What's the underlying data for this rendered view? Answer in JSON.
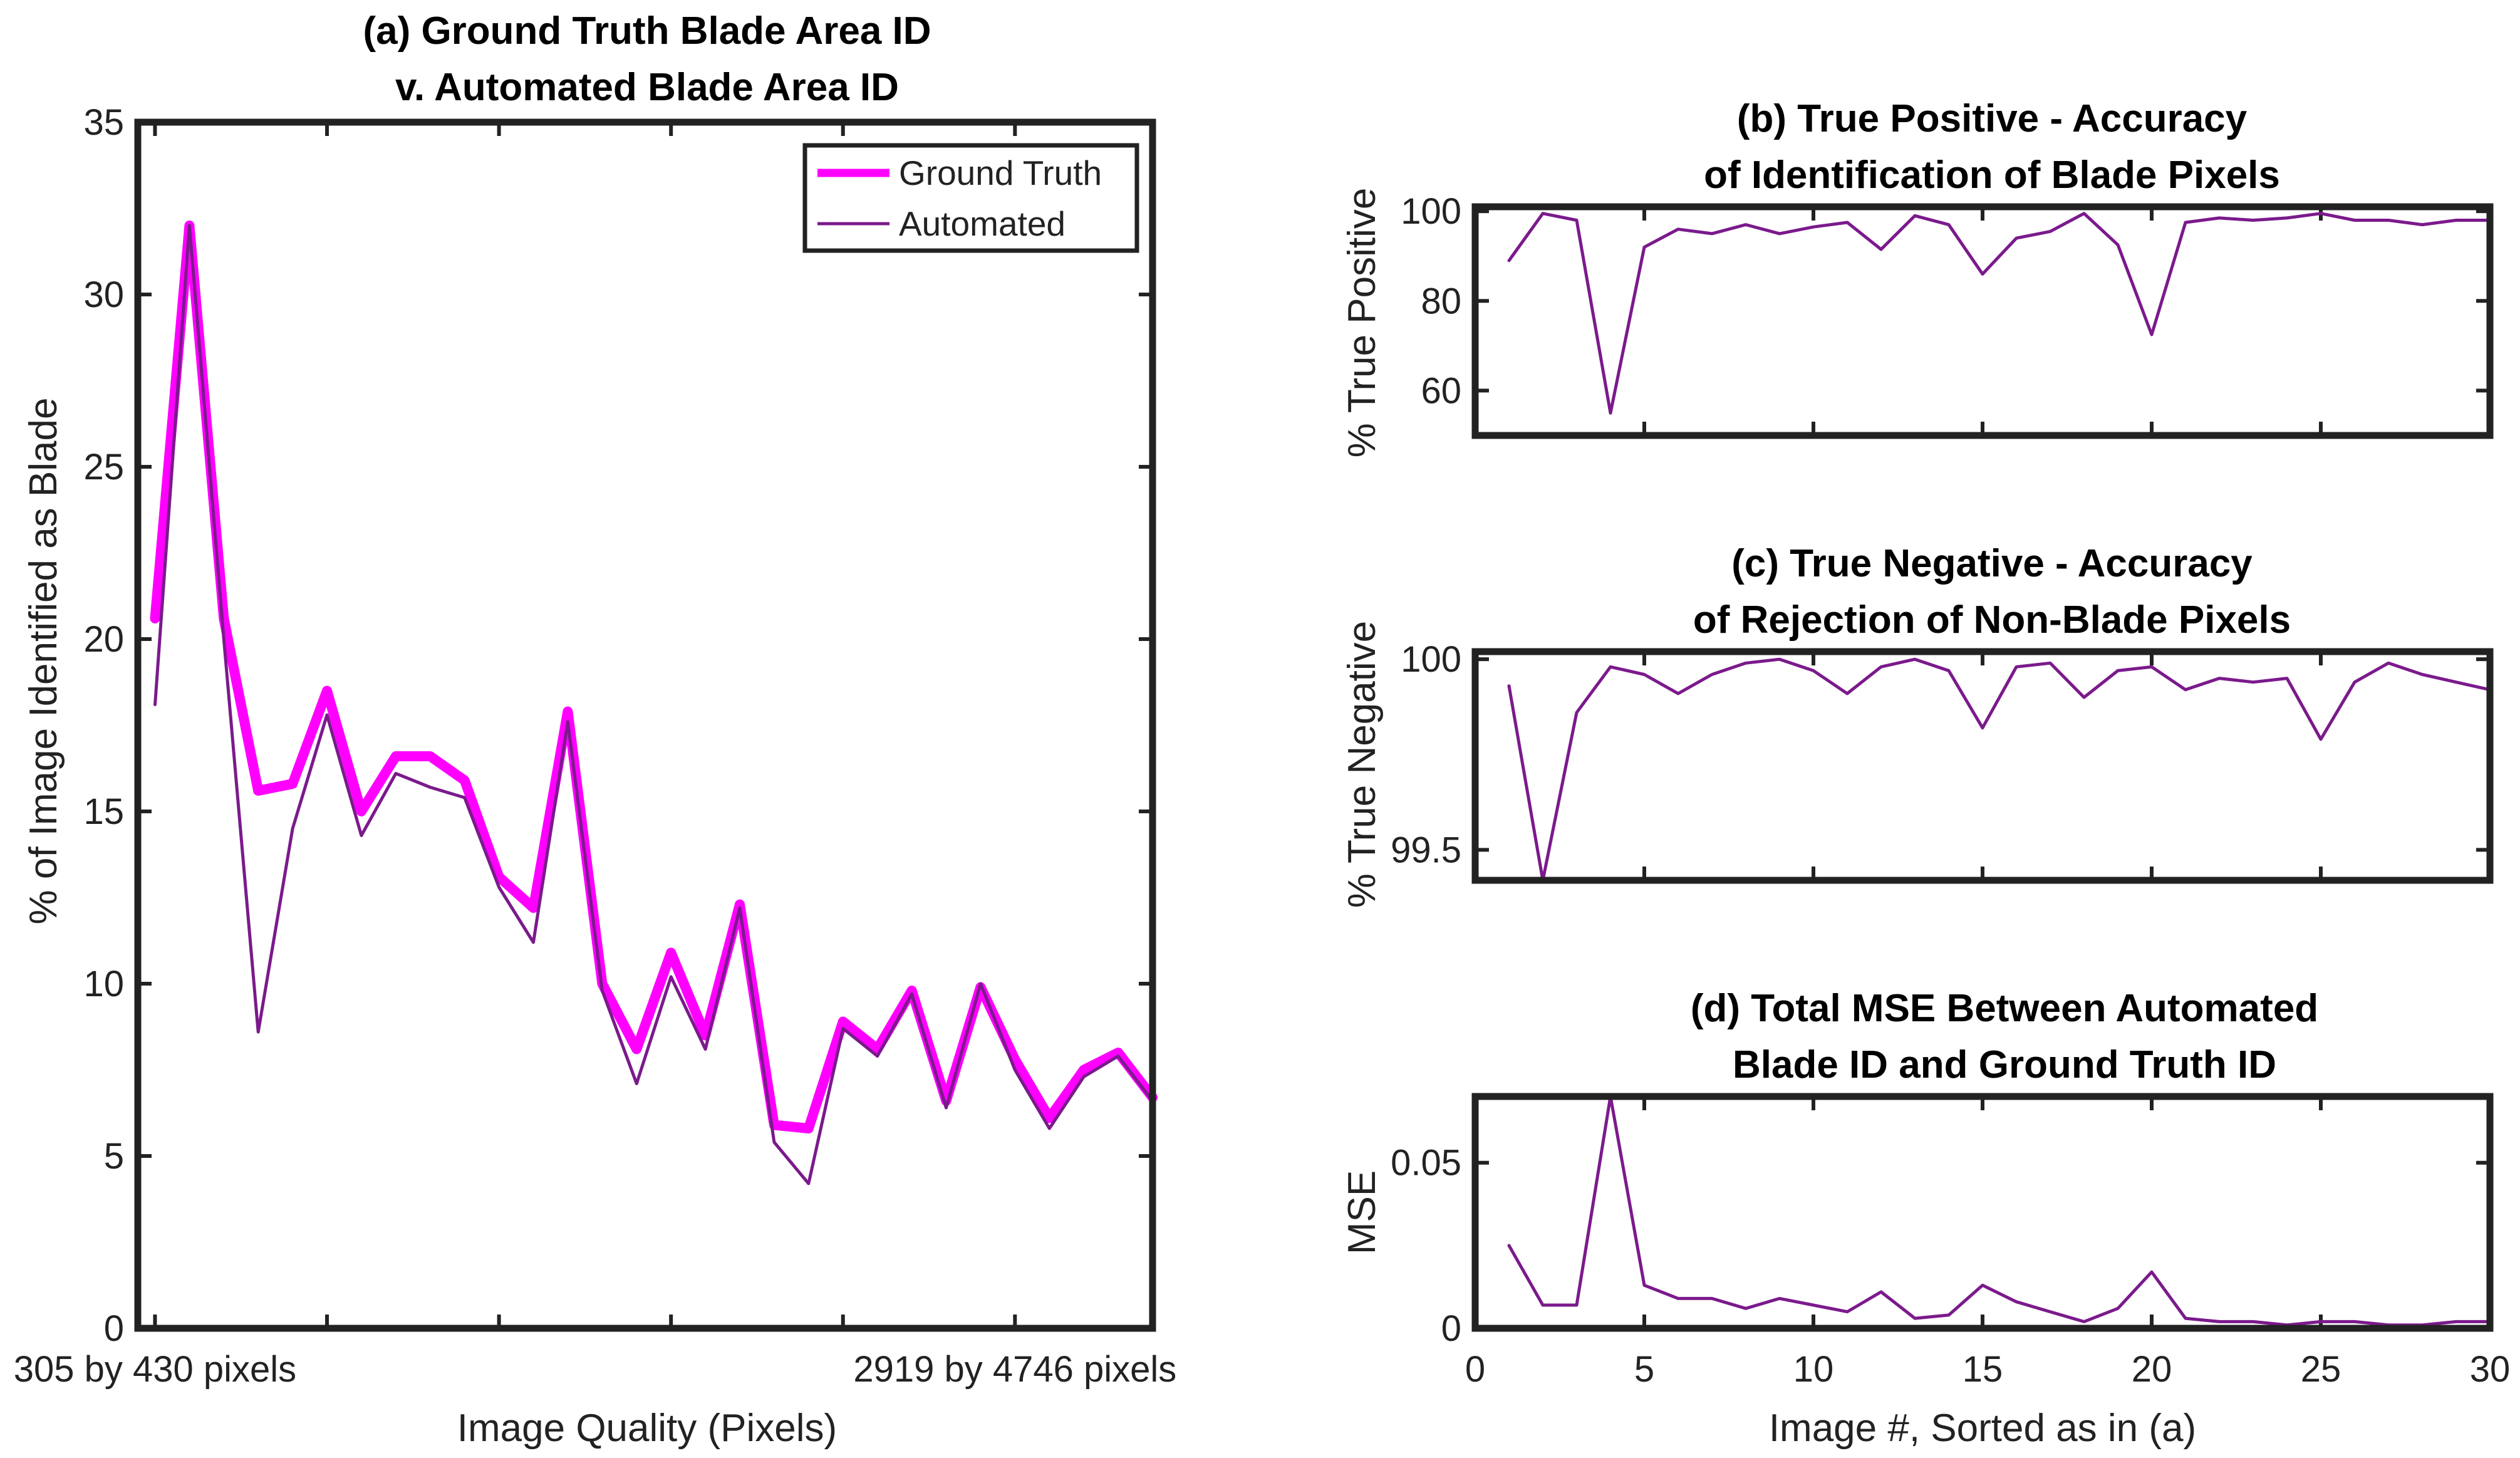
{
  "colors": {
    "ground_truth": "#ff00ff",
    "automated": "#7b1a8c",
    "axis": "#222222"
  },
  "chart_data": [
    {
      "id": "a",
      "type": "line",
      "title": [
        "(a) Ground Truth Blade Area ID",
        "v. Automated Blade Area ID"
      ],
      "xlabel": "Image Quality (Pixels)",
      "ylabel": "% of Image Identified as Blade",
      "xlim": [
        0.5,
        30
      ],
      "ylim": [
        0,
        35
      ],
      "yticks": [
        0,
        5,
        10,
        15,
        20,
        25,
        30,
        35
      ],
      "xtick_positions": [
        1,
        6,
        11,
        16,
        21,
        26,
        30
      ],
      "xtick_labels": [
        {
          "x": 1,
          "text": "305 by 430 pixels"
        },
        {
          "x": 26,
          "text": "2919 by 4746 pixels"
        }
      ],
      "legend": {
        "location": "top-right",
        "entries": [
          "Ground Truth",
          "Automated"
        ]
      },
      "x": [
        1,
        2,
        3,
        4,
        5,
        6,
        7,
        8,
        9,
        10,
        11,
        12,
        13,
        14,
        15,
        16,
        17,
        18,
        19,
        20,
        21,
        22,
        23,
        24,
        25,
        26,
        27,
        28,
        29,
        30
      ],
      "series": [
        {
          "name": "Ground Truth",
          "values": [
            20.6,
            32.0,
            20.6,
            15.6,
            15.8,
            18.5,
            15.0,
            16.6,
            16.6,
            15.9,
            13.1,
            12.2,
            17.9,
            10.0,
            8.1,
            10.9,
            8.5,
            12.3,
            5.9,
            5.8,
            8.9,
            8.1,
            9.8,
            6.6,
            9.9,
            7.8,
            6.1,
            7.5,
            8.0,
            6.7
          ]
        },
        {
          "name": "Automated",
          "values": [
            18.1,
            32.0,
            20.0,
            8.6,
            14.5,
            17.8,
            14.3,
            16.1,
            15.7,
            15.4,
            12.8,
            11.2,
            17.6,
            9.8,
            7.1,
            10.2,
            8.1,
            12.2,
            5.4,
            4.2,
            8.7,
            7.9,
            9.7,
            6.4,
            10.0,
            7.5,
            5.8,
            7.3,
            7.9,
            6.6
          ]
        }
      ]
    },
    {
      "id": "b",
      "type": "line",
      "title": [
        "(b) True Positive - Accuracy",
        "of Identification of Blade Pixels"
      ],
      "xlabel": "",
      "ylabel": "% True Positive",
      "xlim": [
        0,
        30
      ],
      "ylim": [
        50,
        101
      ],
      "yticks": [
        60,
        80,
        100
      ],
      "xticks": [
        0,
        5,
        10,
        15,
        20,
        25,
        30
      ],
      "x": [
        1,
        2,
        3,
        4,
        5,
        6,
        7,
        8,
        9,
        10,
        11,
        12,
        13,
        14,
        15,
        16,
        17,
        18,
        19,
        20,
        21,
        22,
        23,
        24,
        25,
        26,
        27,
        28,
        29,
        30
      ],
      "series": [
        {
          "name": "True Positive",
          "values": [
            89,
            99.5,
            98,
            55,
            92,
            96,
            95,
            97,
            95,
            96.5,
            97.5,
            91.5,
            99,
            97,
            86,
            94,
            95.5,
            99.5,
            92.5,
            72.5,
            97.5,
            98.5,
            98,
            98.5,
            99.5,
            98,
            98,
            97,
            98,
            98
          ]
        }
      ]
    },
    {
      "id": "c",
      "type": "line",
      "title": [
        "(c) True Negative - Accuracy",
        "of Rejection of Non-Blade Pixels"
      ],
      "xlabel": "",
      "ylabel": "% True Negative",
      "xlim": [
        0,
        30
      ],
      "ylim": [
        99.42,
        100.02
      ],
      "yticks": [
        99.5,
        100
      ],
      "xticks": [
        0,
        5,
        10,
        15,
        20,
        25,
        30
      ],
      "x": [
        1,
        2,
        3,
        4,
        5,
        6,
        7,
        8,
        9,
        10,
        11,
        12,
        13,
        14,
        15,
        16,
        17,
        18,
        19,
        20,
        21,
        22,
        23,
        24,
        25,
        26,
        27,
        28,
        29,
        30
      ],
      "series": [
        {
          "name": "True Negative",
          "values": [
            99.93,
            99.42,
            99.86,
            99.98,
            99.96,
            99.91,
            99.96,
            99.99,
            100.0,
            99.97,
            99.91,
            99.98,
            100.0,
            99.97,
            99.82,
            99.98,
            99.99,
            99.9,
            99.97,
            99.98,
            99.92,
            99.95,
            99.94,
            99.95,
            99.79,
            99.94,
            99.99,
            99.96,
            99.94,
            99.92
          ]
        }
      ]
    },
    {
      "id": "d",
      "type": "line",
      "title": [
        "(d) Total MSE Between Automated",
        "Blade ID and Ground Truth ID"
      ],
      "xlabel": "Image #, Sorted as in (a)",
      "ylabel": "MSE",
      "xlim": [
        0,
        30
      ],
      "ylim": [
        0,
        0.07
      ],
      "yticks": [
        0,
        0.05
      ],
      "ytick_labels": [
        "0",
        "0.05"
      ],
      "xticks": [
        0,
        5,
        10,
        15,
        20,
        25,
        30
      ],
      "x": [
        1,
        2,
        3,
        4,
        5,
        6,
        7,
        8,
        9,
        10,
        11,
        12,
        13,
        14,
        15,
        16,
        17,
        18,
        19,
        20,
        21,
        22,
        23,
        24,
        25,
        26,
        27,
        28,
        29,
        30
      ],
      "series": [
        {
          "name": "MSE",
          "values": [
            0.025,
            0.007,
            0.007,
            0.07,
            0.013,
            0.009,
            0.009,
            0.006,
            0.009,
            0.007,
            0.005,
            0.011,
            0.003,
            0.004,
            0.013,
            0.008,
            0.005,
            0.002,
            0.006,
            0.017,
            0.003,
            0.002,
            0.002,
            0.001,
            0.002,
            0.002,
            0.001,
            0.001,
            0.002,
            0.002
          ]
        }
      ]
    }
  ]
}
